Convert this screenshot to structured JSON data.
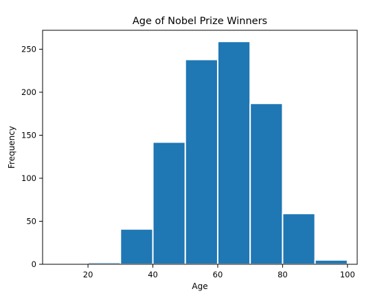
{
  "chart_data": {
    "type": "bar",
    "title": "Age of Nobel Prize Winners",
    "xlabel": "Age",
    "ylabel": "Frequency",
    "xlim": [
      6,
      103
    ],
    "ylim": [
      0,
      272
    ],
    "xticks": [
      20,
      40,
      60,
      80,
      100
    ],
    "yticks": [
      0,
      50,
      100,
      150,
      200,
      250
    ],
    "bins": [
      {
        "start": 10,
        "end": 20,
        "value": 1
      },
      {
        "start": 20,
        "end": 30,
        "value": 2
      },
      {
        "start": 30,
        "end": 40,
        "value": 41
      },
      {
        "start": 40,
        "end": 50,
        "value": 142
      },
      {
        "start": 50,
        "end": 60,
        "value": 238
      },
      {
        "start": 60,
        "end": 70,
        "value": 259
      },
      {
        "start": 70,
        "end": 80,
        "value": 187
      },
      {
        "start": 80,
        "end": 90,
        "value": 59
      },
      {
        "start": 90,
        "end": 100,
        "value": 5
      }
    ],
    "bar_color": "#1f77b4",
    "grid": false,
    "legend": "none"
  }
}
